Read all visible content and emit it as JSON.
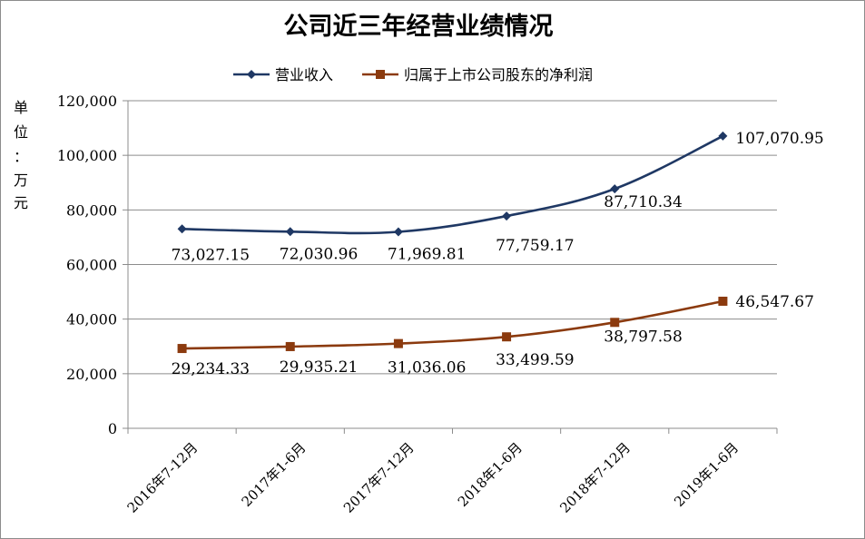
{
  "chart_data": {
    "type": "line",
    "title": "公司近三年经营业绩情况",
    "ylabel": "单位：万元",
    "ylabel_chars": [
      "单",
      "位",
      "：",
      "万",
      "元"
    ],
    "categories": [
      "2016年7-12月",
      "2017年1-6月",
      "2017年7-12月",
      "2018年1-6月",
      "2018年7-12月",
      "2019年1-6月"
    ],
    "ylim": [
      0,
      120000
    ],
    "yticks": [
      0,
      20000,
      40000,
      60000,
      80000,
      100000,
      120000
    ],
    "ytick_labels": [
      "0",
      "20,000",
      "40,000",
      "60,000",
      "80,000",
      "100,000",
      "120,000"
    ],
    "grid": true,
    "legend_position": "top",
    "series": [
      {
        "name": "营业收入",
        "color": "#1f3864",
        "marker": "diamond",
        "values": [
          73027.15,
          72030.96,
          71969.81,
          77759.17,
          87710.34,
          107070.95
        ],
        "labels": [
          "73,027.15",
          "72,030.96",
          "71,969.81",
          "77,759.17",
          "87,710.34",
          "107,070.95"
        ]
      },
      {
        "name": "归属于上市公司股东的净利润",
        "color": "#8b3a0e",
        "marker": "square",
        "values": [
          29234.33,
          29935.21,
          31036.06,
          33499.59,
          38797.58,
          46547.67
        ],
        "labels": [
          "29,234.33",
          "29,935.21",
          "31,036.06",
          "33,499.59",
          "38,797.58",
          "46,547.67"
        ]
      }
    ]
  }
}
